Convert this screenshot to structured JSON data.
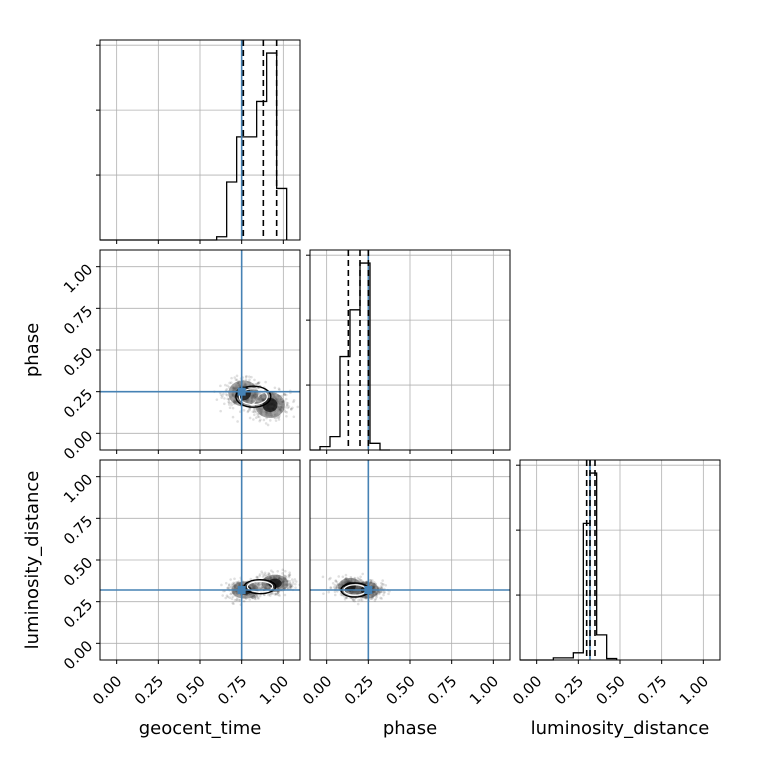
{
  "chart_data": {
    "type": "corner",
    "parameters": [
      "geocent_time",
      "phase",
      "luminosity_distance"
    ],
    "axis_range": [
      -0.1,
      1.1
    ],
    "ticks": [
      0.0,
      0.25,
      0.5,
      0.75,
      1.0
    ],
    "tick_labels": [
      "0.00",
      "0.25",
      "0.50",
      "0.75",
      "1.00"
    ],
    "grid": true,
    "truths": {
      "geocent_time": 0.75,
      "phase": 0.25,
      "luminosity_distance": 0.32
    },
    "truth_color": "#4682b4",
    "diagonal_histograms": [
      {
        "parameter": "geocent_time",
        "bin_edges": [
          0.6,
          0.66,
          0.72,
          0.78,
          0.84,
          0.9,
          0.96,
          1.02
        ],
        "counts": [
          0.5,
          9.0,
          16.0,
          16.0,
          21.5,
          29.0,
          8.0
        ],
        "quantiles": [
          0.76,
          0.88,
          0.96
        ]
      },
      {
        "parameter": "phase",
        "bin_edges": [
          -0.04,
          0.02,
          0.08,
          0.14,
          0.2,
          0.26,
          0.32,
          0.38
        ],
        "counts": [
          0.5,
          2.0,
          14.0,
          21.0,
          28.0,
          1.0,
          0.0
        ],
        "quantiles": [
          0.13,
          0.2,
          0.25
        ]
      },
      {
        "parameter": "luminosity_distance",
        "bin_edges": [
          0.1,
          0.16,
          0.22,
          0.28,
          0.32,
          0.36,
          0.42,
          0.48
        ],
        "counts": [
          0.3,
          0.3,
          1.0,
          19.0,
          26.0,
          3.5,
          0.2
        ],
        "quantiles": [
          0.3,
          0.32,
          0.35
        ]
      }
    ],
    "scatter_panels": [
      {
        "x": "geocent_time",
        "y": "phase",
        "center": [
          0.82,
          0.22
        ],
        "spread": [
          0.1,
          0.06
        ],
        "density_peaks": [
          [
            0.76,
            0.24
          ],
          [
            0.92,
            0.17
          ]
        ]
      },
      {
        "x": "geocent_time",
        "y": "luminosity_distance",
        "center": [
          0.86,
          0.34
        ],
        "spread": [
          0.09,
          0.04
        ],
        "density_peaks": [
          [
            0.77,
            0.32
          ],
          [
            0.95,
            0.36
          ]
        ]
      },
      {
        "x": "phase",
        "y": "luminosity_distance",
        "center": [
          0.17,
          0.32
        ],
        "spread": [
          0.08,
          0.04
        ],
        "density_peaks": [
          [
            0.14,
            0.34
          ],
          [
            0.24,
            0.32
          ]
        ]
      }
    ]
  }
}
